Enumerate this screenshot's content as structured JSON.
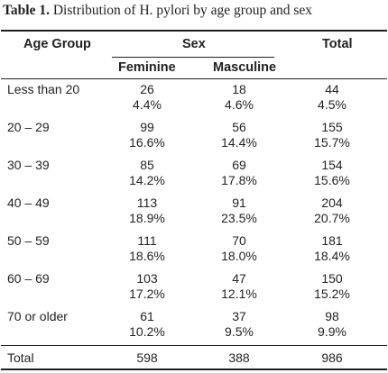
{
  "caption": {
    "label": "Table 1.",
    "text": "Distribution of H. pylori by age group and sex"
  },
  "headers": {
    "age_group": "Age Group",
    "sex": "Sex",
    "feminine": "Feminine",
    "masculine": "Masculine",
    "total": "Total"
  },
  "rows": [
    {
      "group": "Less than 20",
      "fem_n": "26",
      "fem_pct": "4.4%",
      "mas_n": "18",
      "mas_pct": "4.6%",
      "tot_n": "44",
      "tot_pct": "4.5%"
    },
    {
      "group": "20 – 29",
      "fem_n": "99",
      "fem_pct": "16.6%",
      "mas_n": "56",
      "mas_pct": "14.4%",
      "tot_n": "155",
      "tot_pct": "15.7%"
    },
    {
      "group": "30 – 39",
      "fem_n": "85",
      "fem_pct": "14.2%",
      "mas_n": "69",
      "mas_pct": "17.8%",
      "tot_n": "154",
      "tot_pct": "15.6%"
    },
    {
      "group": "40 – 49",
      "fem_n": "113",
      "fem_pct": "18.9%",
      "mas_n": "91",
      "mas_pct": "23.5%",
      "tot_n": "204",
      "tot_pct": "20.7%"
    },
    {
      "group": "50 – 59",
      "fem_n": "111",
      "fem_pct": "18.6%",
      "mas_n": "70",
      "mas_pct": "18.0%",
      "tot_n": "181",
      "tot_pct": "18.4%"
    },
    {
      "group": "60 – 69",
      "fem_n": "103",
      "fem_pct": "17.2%",
      "mas_n": "47",
      "mas_pct": "12.1%",
      "tot_n": "150",
      "tot_pct": "15.2%"
    },
    {
      "group": "70 or older",
      "fem_n": "61",
      "fem_pct": "10.2%",
      "mas_n": "37",
      "mas_pct": "9.5%",
      "tot_n": "98",
      "tot_pct": "9.9%"
    }
  ],
  "total_row": {
    "label": "Total",
    "fem": "598",
    "mas": "388",
    "tot": "986"
  }
}
